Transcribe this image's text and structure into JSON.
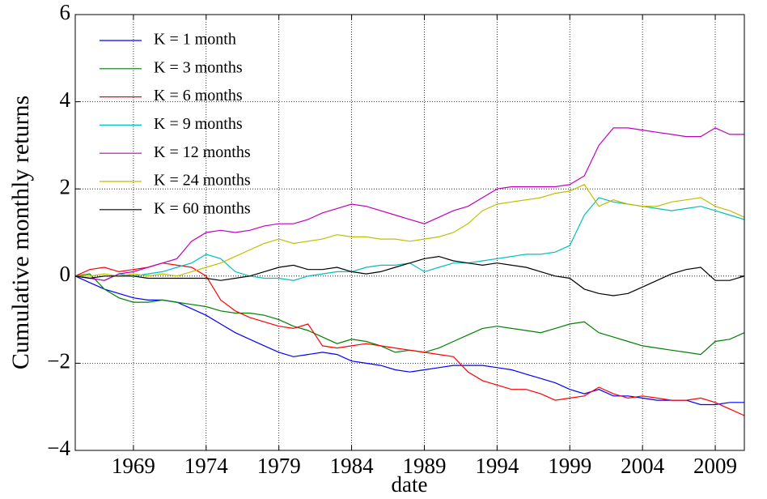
{
  "chart_data": {
    "type": "line",
    "xlabel": "date",
    "ylabel": "Cumulative monthly returns",
    "x": [
      1965,
      1966,
      1967,
      1968,
      1969,
      1970,
      1971,
      1972,
      1973,
      1974,
      1975,
      1976,
      1977,
      1978,
      1979,
      1980,
      1981,
      1982,
      1983,
      1984,
      1985,
      1986,
      1987,
      1988,
      1989,
      1990,
      1991,
      1992,
      1993,
      1994,
      1995,
      1996,
      1997,
      1998,
      1999,
      2000,
      2001,
      2002,
      2003,
      2004,
      2005,
      2006,
      2007,
      2008,
      2009,
      2010,
      2011
    ],
    "series": [
      {
        "name": "K = 1 month",
        "color": "#0000ff",
        "values": [
          0,
          -0.15,
          -0.3,
          -0.4,
          -0.5,
          -0.55,
          -0.55,
          -0.6,
          -0.75,
          -0.9,
          -1.1,
          -1.3,
          -1.45,
          -1.6,
          -1.75,
          -1.85,
          -1.8,
          -1.75,
          -1.8,
          -1.95,
          -2.0,
          -2.05,
          -2.15,
          -2.2,
          -2.15,
          -2.1,
          -2.05,
          -2.05,
          -2.05,
          -2.1,
          -2.15,
          -2.25,
          -2.35,
          -2.45,
          -2.6,
          -2.7,
          -2.6,
          -2.75,
          -2.75,
          -2.8,
          -2.85,
          -2.85,
          -2.85,
          -2.95,
          -2.95,
          -2.9,
          -2.9
        ]
      },
      {
        "name": "K = 3 months",
        "color": "#008000",
        "values": [
          0,
          0.05,
          -0.3,
          -0.5,
          -0.6,
          -0.6,
          -0.55,
          -0.6,
          -0.65,
          -0.7,
          -0.8,
          -0.85,
          -0.85,
          -0.9,
          -1.0,
          -1.15,
          -1.25,
          -1.4,
          -1.55,
          -1.45,
          -1.5,
          -1.6,
          -1.75,
          -1.7,
          -1.75,
          -1.65,
          -1.5,
          -1.35,
          -1.2,
          -1.15,
          -1.2,
          -1.25,
          -1.3,
          -1.2,
          -1.1,
          -1.05,
          -1.3,
          -1.4,
          -1.5,
          -1.6,
          -1.65,
          -1.7,
          -1.75,
          -1.8,
          -1.5,
          -1.45,
          -1.3
        ]
      },
      {
        "name": "K = 6 months",
        "color": "#ff0000",
        "values": [
          0,
          0.15,
          0.2,
          0.1,
          0.15,
          0.2,
          0.3,
          0.25,
          0.2,
          0.0,
          -0.55,
          -0.8,
          -0.95,
          -1.05,
          -1.15,
          -1.2,
          -1.1,
          -1.6,
          -1.65,
          -1.6,
          -1.55,
          -1.6,
          -1.65,
          -1.7,
          -1.75,
          -1.8,
          -1.85,
          -2.2,
          -2.4,
          -2.5,
          -2.6,
          -2.6,
          -2.7,
          -2.85,
          -2.8,
          -2.75,
          -2.55,
          -2.7,
          -2.8,
          -2.75,
          -2.8,
          -2.85,
          -2.85,
          -2.8,
          -2.9,
          -3.05,
          -3.2
        ]
      },
      {
        "name": "K = 9 months",
        "color": "#00bfbf",
        "values": [
          0,
          -0.05,
          -0.1,
          0.05,
          0.0,
          0.05,
          0.1,
          0.2,
          0.3,
          0.5,
          0.4,
          0.1,
          0.0,
          -0.05,
          -0.05,
          -0.1,
          0.0,
          0.05,
          0.1,
          0.1,
          0.2,
          0.25,
          0.25,
          0.3,
          0.1,
          0.2,
          0.3,
          0.3,
          0.35,
          0.4,
          0.45,
          0.5,
          0.5,
          0.55,
          0.7,
          1.4,
          1.8,
          1.7,
          1.65,
          1.6,
          1.55,
          1.5,
          1.55,
          1.6,
          1.5,
          1.4,
          1.3
        ]
      },
      {
        "name": "K = 12 months",
        "color": "#bf00bf",
        "values": [
          0,
          -0.05,
          -0.1,
          0.05,
          0.1,
          0.2,
          0.3,
          0.4,
          0.8,
          1.0,
          1.05,
          1.0,
          1.05,
          1.15,
          1.2,
          1.2,
          1.3,
          1.45,
          1.55,
          1.65,
          1.6,
          1.5,
          1.4,
          1.3,
          1.2,
          1.35,
          1.5,
          1.6,
          1.8,
          2.0,
          2.05,
          2.05,
          2.05,
          2.05,
          2.1,
          2.3,
          3.0,
          3.4,
          3.4,
          3.35,
          3.3,
          3.25,
          3.2,
          3.2,
          3.4,
          3.25,
          3.25
        ]
      },
      {
        "name": "K = 24 months",
        "color": "#bfbf00",
        "values": [
          0,
          0.0,
          0.05,
          0.0,
          0.05,
          0.0,
          0.05,
          0.0,
          0.1,
          0.2,
          0.3,
          0.45,
          0.6,
          0.75,
          0.85,
          0.75,
          0.8,
          0.85,
          0.95,
          0.9,
          0.9,
          0.85,
          0.85,
          0.8,
          0.85,
          0.9,
          1.0,
          1.2,
          1.5,
          1.65,
          1.7,
          1.75,
          1.8,
          1.9,
          1.95,
          2.1,
          1.6,
          1.75,
          1.65,
          1.6,
          1.6,
          1.7,
          1.75,
          1.8,
          1.6,
          1.5,
          1.35
        ]
      },
      {
        "name": "K = 60 months",
        "color": "#000000",
        "values": [
          0,
          -0.05,
          0.0,
          0.0,
          0.0,
          -0.05,
          -0.05,
          -0.05,
          -0.05,
          -0.05,
          -0.1,
          -0.05,
          0.0,
          0.1,
          0.2,
          0.25,
          0.15,
          0.15,
          0.2,
          0.1,
          0.05,
          0.1,
          0.2,
          0.3,
          0.4,
          0.45,
          0.35,
          0.3,
          0.25,
          0.3,
          0.25,
          0.2,
          0.1,
          0.0,
          -0.05,
          -0.3,
          -0.4,
          -0.45,
          -0.4,
          -0.25,
          -0.1,
          0.05,
          0.15,
          0.2,
          -0.1,
          -0.1,
          0.0
        ]
      }
    ],
    "xlim": [
      1965,
      2011
    ],
    "xticks": [
      1969,
      1974,
      1979,
      1984,
      1989,
      1994,
      1999,
      2004,
      2009
    ],
    "ylim": [
      -4,
      6
    ],
    "yticks": [
      {
        "value": -4,
        "label": "−4"
      },
      {
        "value": -2,
        "label": "−2"
      },
      0,
      2,
      4,
      6
    ],
    "grid": true,
    "legend": "upper left"
  }
}
